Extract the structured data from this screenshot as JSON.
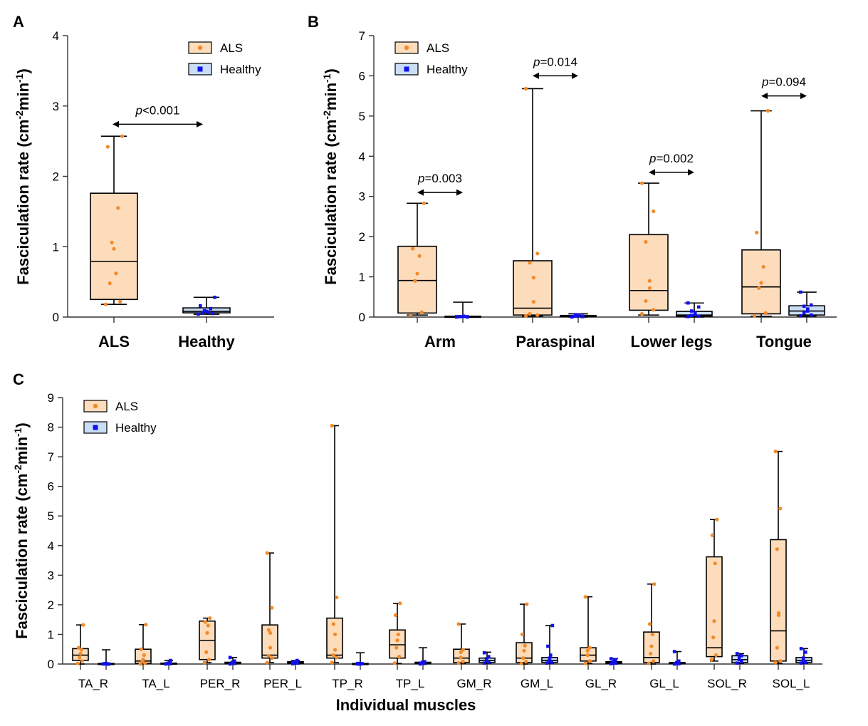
{
  "colors": {
    "als_fill": "#fddcbc",
    "als_point": "#f28a28",
    "healthy_fill": "#c9ddf5",
    "healthy_point": "#1111ee",
    "axis": "#333333"
  },
  "chart_data": [
    {
      "panel": "A",
      "type": "box",
      "categories": [
        "ALS",
        "Healthy"
      ],
      "ylabel_main": "Fasciculation rate (cm",
      "ylabel_sup1": "-2",
      "ylabel_mid": "min",
      "ylabel_sup2": "-1",
      "ylabel_end": ")",
      "ylim": [
        0,
        4
      ],
      "yticks": [
        "0",
        "1",
        "2",
        "3",
        "4"
      ],
      "legend": {
        "placement": "top-right",
        "entries": [
          "ALS",
          "Healthy"
        ]
      },
      "comparisons": [
        {
          "label": "p<0.001",
          "p_letter": "p",
          "p_rest": "<0.001",
          "from": 0,
          "to": 1
        }
      ],
      "series": [
        {
          "name": "ALS",
          "boxes": [
            {
              "category": "ALS",
              "min": 0.18,
              "q1": 0.25,
              "median": 0.79,
              "q3": 1.76,
              "max": 2.57,
              "points": [
                0.18,
                0.22,
                0.48,
                0.62,
                0.97,
                1.06,
                1.55,
                2.42,
                2.57
              ]
            }
          ]
        },
        {
          "name": "Healthy",
          "boxes": [
            {
              "category": "Healthy",
              "min": 0.04,
              "q1": 0.06,
              "median": 0.08,
              "q3": 0.13,
              "max": 0.28,
              "points": [
                0.04,
                0.05,
                0.06,
                0.07,
                0.08,
                0.09,
                0.12,
                0.16,
                0.28
              ]
            }
          ]
        }
      ]
    },
    {
      "panel": "B",
      "type": "box",
      "categories": [
        "Arm",
        "Paraspinal",
        "Lower legs",
        "Tongue"
      ],
      "ylabel_main": "Fasciculation rate (cm",
      "ylabel_sup1": "-2",
      "ylabel_mid": "min",
      "ylabel_sup2": "-1",
      "ylabel_end": ")",
      "ylim": [
        0,
        7
      ],
      "yticks": [
        "0",
        "1",
        "2",
        "3",
        "4",
        "5",
        "6",
        "7"
      ],
      "legend": {
        "placement": "top-left",
        "entries": [
          "ALS",
          "Healthy"
        ]
      },
      "comparisons": [
        {
          "label": "p=0.003",
          "p_letter": "p",
          "p_rest": "=0.003",
          "category": 0,
          "y": 3.1
        },
        {
          "label": "p=0.014",
          "p_letter": "p",
          "p_rest": "=0.014",
          "category": 1,
          "y": 6.0
        },
        {
          "label": "p=0.002",
          "p_letter": "p",
          "p_rest": "=0.002",
          "category": 2,
          "y": 3.6
        },
        {
          "label": "p=0.094",
          "p_letter": "p",
          "p_rest": "=0.094",
          "category": 3,
          "y": 5.5
        }
      ],
      "series": [
        {
          "name": "ALS",
          "boxes": [
            {
              "category": "Arm",
              "min": 0.05,
              "q1": 0.1,
              "median": 0.91,
              "q3": 1.76,
              "max": 2.83,
              "points": [
                0.05,
                0.12,
                0.9,
                1.08,
                1.52,
                1.7,
                2.83
              ]
            },
            {
              "category": "Paraspinal",
              "min": 0.02,
              "q1": 0.05,
              "median": 0.22,
              "q3": 1.4,
              "max": 5.68,
              "points": [
                0.03,
                0.05,
                0.08,
                0.38,
                0.98,
                1.35,
                1.58,
                5.68
              ]
            },
            {
              "category": "Lower legs",
              "min": 0.05,
              "q1": 0.17,
              "median": 0.66,
              "q3": 2.05,
              "max": 3.33,
              "points": [
                0.08,
                0.18,
                0.4,
                0.72,
                0.9,
                1.87,
                2.63,
                3.33
              ]
            },
            {
              "category": "Tongue",
              "min": 0.02,
              "q1": 0.08,
              "median": 0.75,
              "q3": 1.67,
              "max": 5.13,
              "points": [
                0.03,
                0.1,
                0.72,
                0.85,
                1.25,
                2.1,
                5.13
              ]
            }
          ]
        },
        {
          "name": "Healthy",
          "boxes": [
            {
              "category": "Arm",
              "min": 0.0,
              "q1": 0.0,
              "median": 0.01,
              "q3": 0.02,
              "max": 0.37,
              "points": [
                0.0,
                0.01,
                0.01,
                0.02,
                0.02,
                0.01,
                0.0,
                0.01
              ]
            },
            {
              "category": "Paraspinal",
              "min": 0.0,
              "q1": 0.01,
              "median": 0.02,
              "q3": 0.04,
              "max": 0.08,
              "points": [
                0.0,
                0.01,
                0.02,
                0.03,
                0.05,
                0.06,
                0.02,
                0.01
              ]
            },
            {
              "category": "Lower legs",
              "min": 0.0,
              "q1": 0.02,
              "median": 0.05,
              "q3": 0.14,
              "max": 0.35,
              "points": [
                0.01,
                0.02,
                0.04,
                0.06,
                0.1,
                0.15,
                0.25,
                0.35
              ]
            },
            {
              "category": "Tongue",
              "min": 0.02,
              "q1": 0.05,
              "median": 0.15,
              "q3": 0.28,
              "max": 0.62,
              "points": [
                0.03,
                0.05,
                0.1,
                0.15,
                0.2,
                0.27,
                0.3,
                0.62
              ]
            }
          ]
        }
      ]
    },
    {
      "panel": "C",
      "type": "box",
      "categories": [
        "TA_R",
        "TA_L",
        "PER_R",
        "PER_L",
        "TP_R",
        "TP_L",
        "GM_R",
        "GM_L",
        "GL_R",
        "GL_L",
        "SOL_R",
        "SOL_L"
      ],
      "xlabel": "Individual muscles",
      "ylabel_main": "Fasciculation rate (cm",
      "ylabel_sup1": "-2",
      "ylabel_mid": "min",
      "ylabel_sup2": "-1",
      "ylabel_end": ")",
      "ylim": [
        0,
        9
      ],
      "yticks": [
        "0",
        "1",
        "2",
        "3",
        "4",
        "5",
        "6",
        "7",
        "8",
        "9"
      ],
      "legend": {
        "placement": "top-left",
        "entries": [
          "ALS",
          "Healthy"
        ]
      },
      "series": [
        {
          "name": "ALS",
          "boxes": [
            {
              "category": "TA_R",
              "min": 0.0,
              "q1": 0.12,
              "median": 0.3,
              "q3": 0.52,
              "max": 1.32,
              "points": [
                0.02,
                0.1,
                0.22,
                0.35,
                0.48,
                0.55,
                1.32
              ]
            },
            {
              "category": "TA_L",
              "min": 0.0,
              "q1": 0.02,
              "median": 0.1,
              "q3": 0.5,
              "max": 1.33,
              "points": [
                0.0,
                0.03,
                0.08,
                0.15,
                0.3,
                0.5,
                1.33
              ]
            },
            {
              "category": "PER_R",
              "min": 0.05,
              "q1": 0.15,
              "median": 0.8,
              "q3": 1.45,
              "max": 1.55,
              "points": [
                0.05,
                0.15,
                0.4,
                1.05,
                1.3,
                1.42,
                1.55
              ]
            },
            {
              "category": "PER_L",
              "min": 0.05,
              "q1": 0.2,
              "median": 0.3,
              "q3": 1.32,
              "max": 3.75,
              "points": [
                0.05,
                0.2,
                0.28,
                0.55,
                1.05,
                1.15,
                1.9,
                3.75
              ]
            },
            {
              "category": "TP_R",
              "min": 0.05,
              "q1": 0.2,
              "median": 0.3,
              "q3": 1.55,
              "max": 8.05,
              "points": [
                0.05,
                0.22,
                0.3,
                0.48,
                1.0,
                1.35,
                2.25,
                8.05
              ]
            },
            {
              "category": "TP_L",
              "min": 0.02,
              "q1": 0.2,
              "median": 0.65,
              "q3": 1.15,
              "max": 2.05,
              "points": [
                0.03,
                0.25,
                0.55,
                0.8,
                1.0,
                1.65,
                2.05
              ]
            },
            {
              "category": "GM_R",
              "min": 0.02,
              "q1": 0.05,
              "median": 0.2,
              "q3": 0.5,
              "max": 1.35,
              "points": [
                0.03,
                0.08,
                0.22,
                0.4,
                0.48,
                1.35
              ]
            },
            {
              "category": "GM_L",
              "min": 0.0,
              "q1": 0.05,
              "median": 0.2,
              "q3": 0.72,
              "max": 2.02,
              "points": [
                0.02,
                0.08,
                0.2,
                0.45,
                0.62,
                1.0,
                2.02
              ]
            },
            {
              "category": "GL_R",
              "min": 0.02,
              "q1": 0.1,
              "median": 0.3,
              "q3": 0.55,
              "max": 2.27,
              "points": [
                0.02,
                0.1,
                0.3,
                0.45,
                0.55,
                2.27
              ]
            },
            {
              "category": "GL_L",
              "min": 0.0,
              "q1": 0.05,
              "median": 0.22,
              "q3": 1.08,
              "max": 2.7,
              "points": [
                0.02,
                0.1,
                0.35,
                0.6,
                1.0,
                1.35,
                2.7
              ]
            },
            {
              "category": "SOL_R",
              "min": 0.1,
              "q1": 0.25,
              "median": 0.55,
              "q3": 3.62,
              "max": 4.88,
              "points": [
                0.15,
                0.3,
                0.9,
                1.45,
                3.4,
                4.35,
                4.88
              ]
            },
            {
              "category": "SOL_L",
              "min": 0.02,
              "q1": 0.1,
              "median": 1.12,
              "q3": 4.2,
              "max": 7.18,
              "points": [
                0.05,
                0.1,
                0.55,
                1.65,
                1.72,
                3.88,
                5.25,
                7.18
              ]
            }
          ]
        },
        {
          "name": "Healthy",
          "boxes": [
            {
              "category": "TA_R",
              "min": 0.0,
              "q1": 0.0,
              "median": 0.0,
              "q3": 0.02,
              "max": 0.48,
              "points": [
                0.0,
                0.0,
                0.01,
                0.02,
                0.0,
                0.01,
                0.0
              ]
            },
            {
              "category": "TA_L",
              "min": 0.0,
              "q1": 0.0,
              "median": 0.01,
              "q3": 0.03,
              "max": 0.12,
              "points": [
                0.0,
                0.01,
                0.02,
                0.03,
                0.12,
                0.01
              ]
            },
            {
              "category": "PER_R",
              "min": 0.0,
              "q1": 0.01,
              "median": 0.03,
              "q3": 0.06,
              "max": 0.22,
              "points": [
                0.0,
                0.02,
                0.04,
                0.06,
                0.1,
                0.22
              ]
            },
            {
              "category": "PER_L",
              "min": 0.0,
              "q1": 0.02,
              "median": 0.05,
              "q3": 0.08,
              "max": 0.12,
              "points": [
                0.01,
                0.03,
                0.05,
                0.08,
                0.12,
                0.06
              ]
            },
            {
              "category": "TP_R",
              "min": 0.0,
              "q1": 0.0,
              "median": 0.01,
              "q3": 0.02,
              "max": 0.38,
              "points": [
                0.0,
                0.01,
                0.02,
                0.0,
                0.01,
                0.02
              ]
            },
            {
              "category": "TP_L",
              "min": 0.0,
              "q1": 0.01,
              "median": 0.03,
              "q3": 0.06,
              "max": 0.55,
              "points": [
                0.0,
                0.02,
                0.04,
                0.06,
                0.08,
                0.03
              ]
            },
            {
              "category": "GM_R",
              "min": 0.02,
              "q1": 0.05,
              "median": 0.12,
              "q3": 0.2,
              "max": 0.4,
              "points": [
                0.03,
                0.06,
                0.12,
                0.18,
                0.25,
                0.38
              ]
            },
            {
              "category": "GM_L",
              "min": 0.02,
              "q1": 0.05,
              "median": 0.12,
              "q3": 0.22,
              "max": 1.3,
              "points": [
                0.03,
                0.06,
                0.1,
                0.2,
                0.3,
                0.6,
                1.3
              ]
            },
            {
              "category": "GL_R",
              "min": 0.0,
              "q1": 0.02,
              "median": 0.05,
              "q3": 0.08,
              "max": 0.18,
              "points": [
                0.01,
                0.03,
                0.05,
                0.08,
                0.15,
                0.18
              ]
            },
            {
              "category": "GL_L",
              "min": 0.0,
              "q1": 0.01,
              "median": 0.02,
              "q3": 0.05,
              "max": 0.42,
              "points": [
                0.0,
                0.01,
                0.02,
                0.05,
                0.1,
                0.42
              ]
            },
            {
              "category": "SOL_R",
              "min": 0.02,
              "q1": 0.05,
              "median": 0.15,
              "q3": 0.28,
              "max": 0.35,
              "points": [
                0.03,
                0.08,
                0.15,
                0.22,
                0.28,
                0.35
              ]
            },
            {
              "category": "SOL_L",
              "min": 0.02,
              "q1": 0.05,
              "median": 0.12,
              "q3": 0.22,
              "max": 0.52,
              "points": [
                0.03,
                0.06,
                0.12,
                0.2,
                0.4,
                0.52
              ]
            }
          ]
        }
      ]
    }
  ]
}
